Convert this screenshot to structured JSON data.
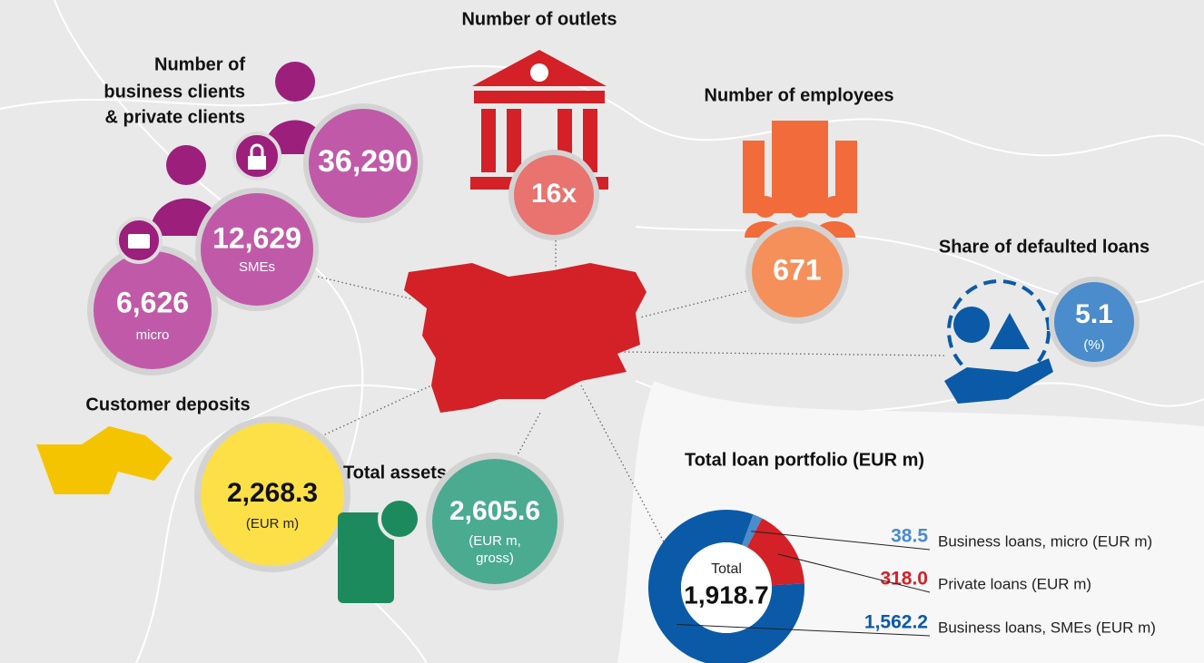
{
  "clients": {
    "title_lines": [
      "Number of",
      "business clients",
      "& private clients"
    ],
    "private": "36,290",
    "sme": {
      "value": "12,629",
      "label": "SMEs"
    },
    "micro": {
      "value": "6,626",
      "label": "micro"
    }
  },
  "outlets": {
    "title": "Number of outlets",
    "value": "16x"
  },
  "employees": {
    "title": "Number of employees",
    "value": "671"
  },
  "defaulted": {
    "title": "Share of defaulted loans",
    "value": "5.1",
    "unit": "(%)"
  },
  "deposits": {
    "title": "Customer deposits",
    "value": "2,268.3",
    "unit": "(EUR m)"
  },
  "assets": {
    "title": "Total assets",
    "value": "2,605.6",
    "unit_lines": [
      "(EUR m,",
      "gross)"
    ]
  },
  "loans": {
    "title": "Total loan portfolio (EUR m)",
    "total_label": "Total",
    "total": "1,918.7",
    "names": [
      "Business loans, micro (EUR m)",
      "Private loans (EUR m)",
      "Business loans, SMEs (EUR m)"
    ],
    "values": [
      38.5,
      318.0,
      1562.2
    ],
    "value_labels": [
      "38.5",
      "318.0",
      "1,562.2"
    ],
    "colors": [
      "#4a8ccc",
      "#d42027",
      "#0b5aa8"
    ]
  }
}
